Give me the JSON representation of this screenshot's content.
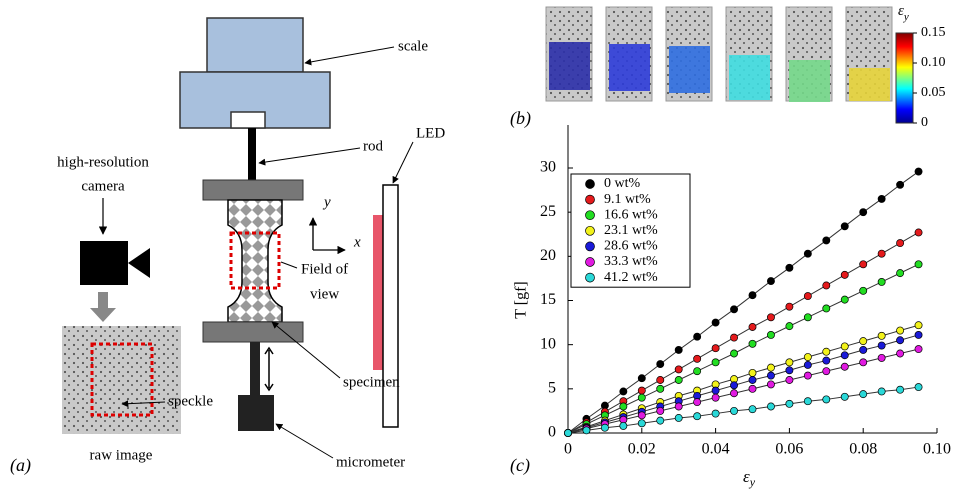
{
  "diagram": {
    "panel_label": "(a)",
    "scale": "scale",
    "rod": "rod",
    "led": "LED",
    "camera": [
      "high-resolution",
      "camera"
    ],
    "axis_y": "y",
    "axis_x": "x",
    "field_of_view": [
      "Field of",
      "view"
    ],
    "specimen": "specimen",
    "speckle": "speckle",
    "raw_image": "raw image",
    "micrometer": "micrometer"
  },
  "strain_maps": {
    "panel_label": "(b)",
    "colorbar": {
      "label": "ε",
      "label_sub": "y",
      "ticks": [
        0,
        0.05,
        {
          "value": 0.1,
          "label": "0.10"
        },
        0.15
      ],
      "lim": [
        0,
        0.15
      ]
    }
  },
  "chart_data": {
    "type": "scatter",
    "panel_label": "(c)",
    "x_label": "ε",
    "x_label_sub": "y",
    "y_label": "T [gf]",
    "x": [
      0,
      0.005,
      0.01,
      0.015,
      0.02,
      0.025,
      0.03,
      0.035,
      0.04,
      0.045,
      0.05,
      0.055,
      0.06,
      0.065,
      0.07,
      0.075,
      0.08,
      0.085,
      0.09,
      0.095
    ],
    "series": [
      {
        "name": "0 wt%",
        "color": "#000000",
        "values": [
          0,
          1.6,
          3.1,
          4.7,
          6.2,
          7.8,
          9.4,
          10.9,
          12.5,
          14.0,
          15.6,
          17.2,
          18.7,
          20.3,
          21.8,
          23.4,
          25.0,
          26.5,
          28.1,
          29.6
        ]
      },
      {
        "name": "9.1 wt%",
        "color": "#e41a1c",
        "values": [
          0,
          1.2,
          2.4,
          3.6,
          4.8,
          6.0,
          7.2,
          8.4,
          9.6,
          10.8,
          12.0,
          13.1,
          14.3,
          15.5,
          16.7,
          17.9,
          19.1,
          20.3,
          21.5,
          22.7
        ]
      },
      {
        "name": "16.6 wt%",
        "color": "#22dd22",
        "values": [
          0,
          1.0,
          2.0,
          3.0,
          4.0,
          5.0,
          6.0,
          7.0,
          8.0,
          9.0,
          10.1,
          11.1,
          12.1,
          13.1,
          14.1,
          15.1,
          16.1,
          17.1,
          18.1,
          19.1
        ]
      },
      {
        "name": "23.1 wt%",
        "color": "#f2f21a",
        "values": [
          0,
          0.7,
          1.4,
          2.1,
          2.8,
          3.5,
          4.2,
          4.8,
          5.5,
          6.1,
          6.8,
          7.4,
          8.0,
          8.6,
          9.2,
          9.8,
          10.4,
          11.0,
          11.6,
          12.2
        ]
      },
      {
        "name": "28.6 wt%",
        "color": "#1a1ad8",
        "values": [
          0,
          0.6,
          1.2,
          1.8,
          2.4,
          3.0,
          3.6,
          4.2,
          4.8,
          5.4,
          6.0,
          6.5,
          7.1,
          7.7,
          8.2,
          8.8,
          9.4,
          9.9,
          10.5,
          11.1
        ]
      },
      {
        "name": "33.3 wt%",
        "color": "#e01ae0",
        "values": [
          0,
          0.5,
          1.0,
          1.5,
          2.0,
          2.5,
          3.0,
          3.5,
          4.0,
          4.5,
          5.0,
          5.5,
          6.0,
          6.5,
          7.0,
          7.5,
          8.0,
          8.5,
          9.0,
          9.5
        ]
      },
      {
        "name": "41.2 wt%",
        "color": "#2ad8d8",
        "values": [
          0,
          0.3,
          0.6,
          0.8,
          1.1,
          1.4,
          1.7,
          1.9,
          2.2,
          2.5,
          2.7,
          3.0,
          3.3,
          3.6,
          3.8,
          4.1,
          4.4,
          4.7,
          4.9,
          5.2
        ]
      }
    ],
    "xlim": [
      0,
      0.1
    ],
    "xticks": [
      0,
      0.02,
      0.04,
      0.06,
      0.08,
      {
        "value": 0.1,
        "label": "0.10"
      }
    ],
    "ylim": [
      0,
      30
    ],
    "yticks": [
      0,
      5,
      10,
      15,
      20,
      25,
      30
    ],
    "legend": "upper left",
    "grid": false
  }
}
